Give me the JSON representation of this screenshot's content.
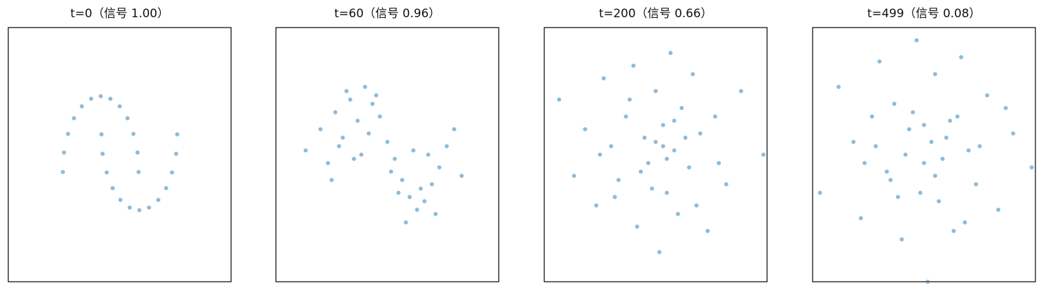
{
  "chart_data": [
    {
      "type": "scatter",
      "title": "t=0（信号 1.00）",
      "color": "#1f77b4",
      "xlim": [
        -3,
        3
      ],
      "ylim": [
        -3,
        3
      ],
      "x": [
        0.51,
        0.48,
        0.37,
        0.21,
        0.0,
        -0.25,
        -0.51,
        -0.77,
        -1.02,
        -1.23,
        -1.39,
        -1.5,
        -1.53,
        -0.49,
        -0.46,
        -0.35,
        -0.19,
        0.02,
        0.27,
        0.53,
        0.79,
        1.04,
        1.25,
        1.41,
        1.52,
        1.55
      ],
      "values": [
        -0.41,
        0.05,
        0.49,
        0.86,
        1.14,
        1.32,
        1.38,
        1.32,
        1.14,
        0.86,
        0.49,
        0.05,
        -0.41,
        0.48,
        0.02,
        -0.42,
        -0.79,
        -1.07,
        -1.25,
        -1.31,
        -1.25,
        -1.07,
        -0.79,
        -0.42,
        0.02,
        0.48
      ]
    },
    {
      "type": "scatter",
      "title": "t=60（信号 0.96）",
      "color": "#1f77b4",
      "xlim": [
        -3,
        3
      ],
      "ylim": [
        -3,
        3
      ],
      "x": [
        -2.2,
        -1.8,
        -1.6,
        -1.4,
        -1.2,
        -1.0,
        -0.8,
        -0.6,
        -0.4,
        -0.2,
        0.0,
        0.2,
        0.4,
        0.6,
        0.8,
        1.0,
        1.2,
        1.4,
        1.6,
        1.8,
        2.0,
        -1.5,
        -1.1,
        -0.7,
        -0.3,
        0.1,
        0.5,
        0.9,
        1.3,
        -1.3,
        -0.5,
        0.3,
        1.1,
        0.7,
        -0.9
      ],
      "values": [
        0.1,
        0.6,
        -0.2,
        1.0,
        0.4,
        1.3,
        0.8,
        1.6,
        1.2,
        0.9,
        0.3,
        -0.1,
        -0.6,
        -1.0,
        -1.3,
        -1.1,
        -0.7,
        -0.3,
        0.2,
        0.6,
        -0.5,
        -0.6,
        1.5,
        0.0,
        1.4,
        -0.4,
        -1.6,
        -0.8,
        -1.4,
        0.2,
        0.5,
        -0.9,
        0.0,
        0.1,
        -0.1
      ]
    },
    {
      "type": "scatter",
      "title": "t=200（信号 0.66）",
      "color": "#1f77b4",
      "xlim": [
        -3,
        3
      ],
      "ylim": [
        -3,
        3
      ],
      "x": [
        -2.6,
        -2.2,
        -1.9,
        -1.6,
        -1.4,
        -1.2,
        -1.0,
        -0.8,
        -0.6,
        -0.5,
        -0.3,
        -0.2,
        0.0,
        0.1,
        0.2,
        0.3,
        0.4,
        0.5,
        0.6,
        0.7,
        0.9,
        1.0,
        1.2,
        1.4,
        1.6,
        1.9,
        2.3,
        2.9,
        -0.4,
        0.0,
        0.3,
        -1.1,
        0.8,
        -0.7,
        1.1,
        -0.1,
        0.5,
        -1.5,
        1.7,
        0.2
      ],
      "values": [
        1.3,
        -0.5,
        0.6,
        -1.2,
        1.8,
        0.2,
        -0.6,
        0.9,
        2.1,
        -1.7,
        0.4,
        -0.2,
        1.5,
        -2.3,
        0.7,
        -0.9,
        2.4,
        0.1,
        -1.4,
        1.1,
        -0.3,
        1.9,
        0.5,
        -1.8,
        0.9,
        -0.7,
        1.5,
        0.0,
        -0.4,
        0.3,
        -0.1,
        -1.0,
        0.4,
        1.3,
        -1.2,
        -0.8,
        0.8,
        0.0,
        -0.2,
        0.2
      ]
    },
    {
      "type": "scatter",
      "title": "t=499（信号 0.08）",
      "color": "#1f77b4",
      "xlim": [
        -3,
        3
      ],
      "ylim": [
        -3,
        3
      ],
      "x": [
        -2.8,
        -2.3,
        -1.9,
        -1.7,
        -1.4,
        -1.2,
        -1.0,
        -0.8,
        -0.6,
        -0.4,
        -0.2,
        0.0,
        0.1,
        0.3,
        0.4,
        0.6,
        0.8,
        1.0,
        1.2,
        1.4,
        1.7,
        2.0,
        2.4,
        2.9,
        -0.5,
        0.2,
        -0.9,
        0.7,
        -0.1,
        0.5,
        -1.3,
        1.1,
        0.0,
        -0.3,
        0.9,
        1.5,
        -0.7,
        0.3,
        -1.6,
        2.2
      ],
      "values": [
        -0.9,
        1.6,
        0.3,
        -1.5,
        0.9,
        2.2,
        -0.4,
        1.2,
        -2.0,
        0.6,
        2.7,
        -0.2,
        -3.0,
        1.9,
        -1.1,
        0.4,
        -1.8,
        2.3,
        0.1,
        -0.7,
        1.4,
        -1.3,
        0.5,
        -0.3,
        0.0,
        0.3,
        -0.6,
        0.8,
        -0.9,
        -0.1,
        0.2,
        -1.6,
        0.7,
        1.0,
        0.9,
        0.2,
        -1.0,
        -0.5,
        -0.2,
        1.1
      ]
    }
  ]
}
